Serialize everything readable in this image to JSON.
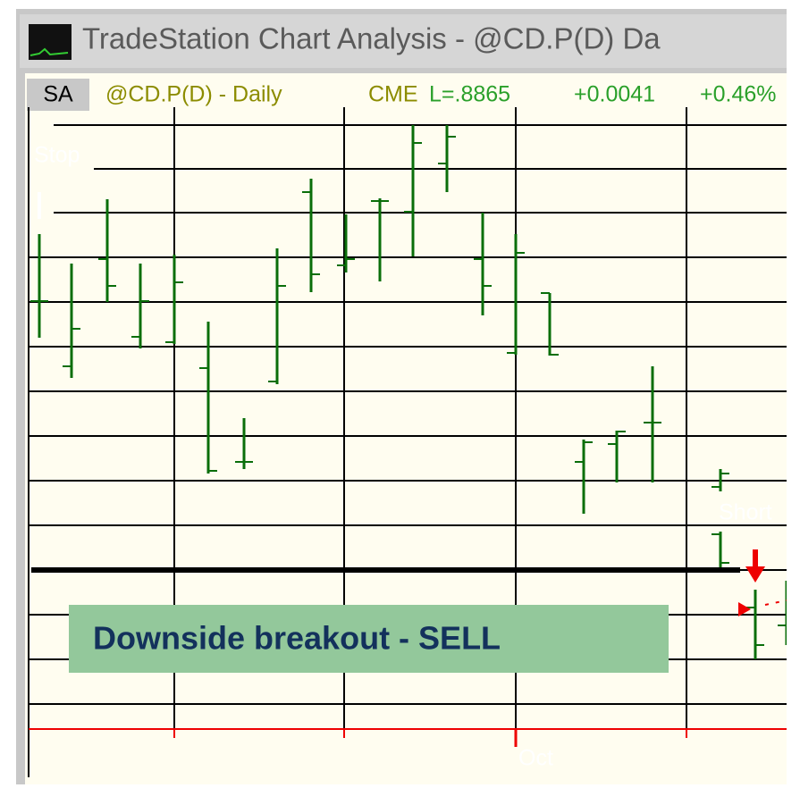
{
  "window": {
    "title": "TradeStation Chart Analysis - @CD.P(D)  Da"
  },
  "header": {
    "symbol_box": "SA",
    "symbol": "@CD.P(D) - Daily",
    "exchange": "CME",
    "last": "L=.8865",
    "change": "+0.0041",
    "percent": "+0.46%"
  },
  "chart": {
    "annotation": "Downside breakout - SELL",
    "labels": [
      "Stop",
      "Short"
    ],
    "x_label": "Oct"
  }
}
